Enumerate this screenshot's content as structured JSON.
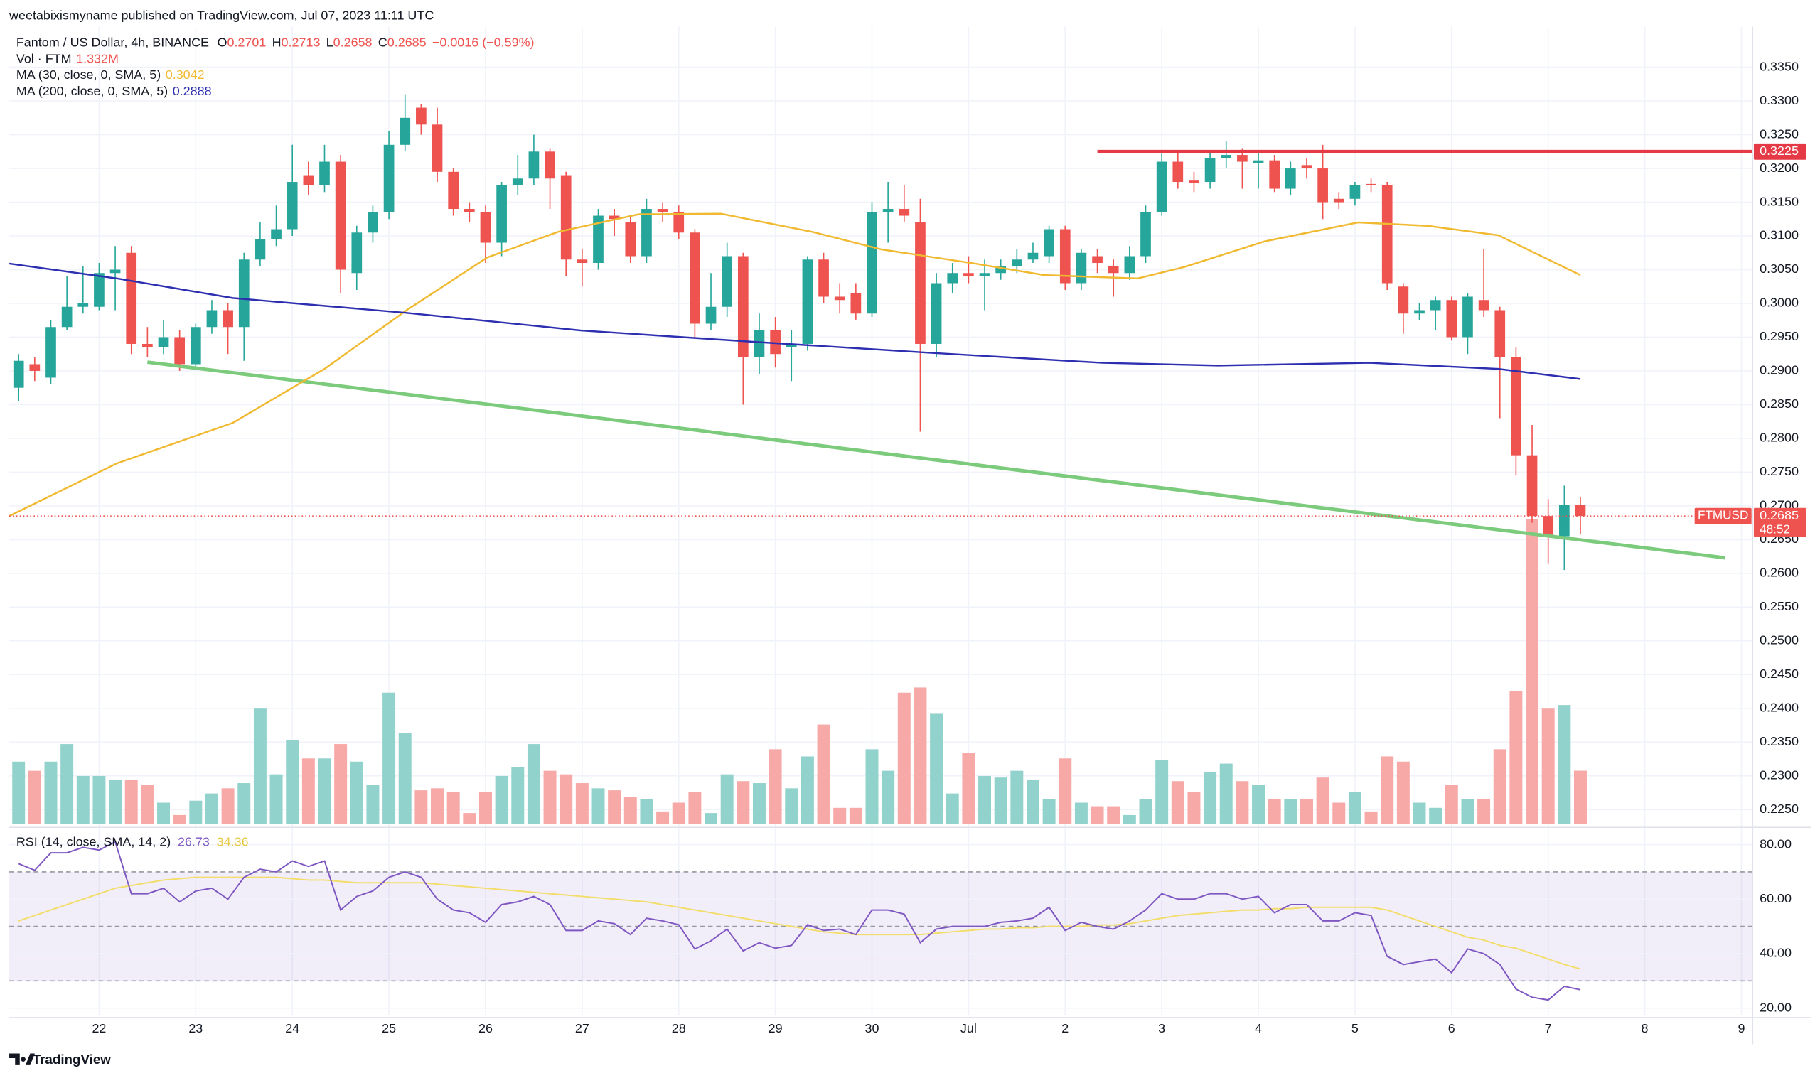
{
  "chart_data": {
    "type": "candlestick",
    "header": "weetabixismyname published on TradingView.com, Jul 07, 2023 11:11 UTC",
    "title": "Fantom / US Dollar, 4h, BINANCE",
    "ohlc_letters": [
      "O",
      "H",
      "L",
      "C"
    ],
    "change": "−0.0016 (−0.59%)",
    "volume_title": "Vol · FTM",
    "volume_label": "1.332M",
    "symbol": "FTMUSD",
    "countdown": "48:52",
    "brand": "TradingView",
    "up_color": "#26a69a",
    "down_color": "#ef5350",
    "volume_up_color": "#92d2cc",
    "volume_down_color": "#f7a9a7",
    "xlim": [
      -0.58,
      107.7
    ],
    "xticks": [
      {
        "value": 5,
        "label": "22"
      },
      {
        "value": 11,
        "label": "23"
      },
      {
        "value": 17,
        "label": "24"
      },
      {
        "value": 23,
        "label": "25"
      },
      {
        "value": 29,
        "label": "26"
      },
      {
        "value": 35,
        "label": "27"
      },
      {
        "value": 41,
        "label": "28"
      },
      {
        "value": 47,
        "label": "29"
      },
      {
        "value": 53,
        "label": "30"
      },
      {
        "value": 59,
        "label": "Jul"
      },
      {
        "value": 65,
        "label": "2"
      },
      {
        "value": 71,
        "label": "3"
      },
      {
        "value": 77,
        "label": "4"
      },
      {
        "value": 83,
        "label": "5"
      },
      {
        "value": 89,
        "label": "6"
      },
      {
        "value": 95,
        "label": "7"
      },
      {
        "value": 101,
        "label": "8"
      },
      {
        "value": 107,
        "label": "9"
      }
    ],
    "ylim": [
      0.2229,
      0.341
    ],
    "yticks": [
      {
        "value": 0.225,
        "label": "0.2250"
      },
      {
        "value": 0.23,
        "label": "0.2300"
      },
      {
        "value": 0.235,
        "label": "0.2350"
      },
      {
        "value": 0.24,
        "label": "0.2400"
      },
      {
        "value": 0.245,
        "label": "0.2450"
      },
      {
        "value": 0.25,
        "label": "0.2500"
      },
      {
        "value": 0.255,
        "label": "0.2550"
      },
      {
        "value": 0.26,
        "label": "0.2600"
      },
      {
        "value": 0.265,
        "label": "0.2650"
      },
      {
        "value": 0.27,
        "label": "0.2700"
      },
      {
        "value": 0.275,
        "label": "0.2750"
      },
      {
        "value": 0.28,
        "label": "0.2800"
      },
      {
        "value": 0.285,
        "label": "0.2850"
      },
      {
        "value": 0.29,
        "label": "0.2900"
      },
      {
        "value": 0.295,
        "label": "0.2950"
      },
      {
        "value": 0.3,
        "label": "0.3000"
      },
      {
        "value": 0.305,
        "label": "0.3050"
      },
      {
        "value": 0.31,
        "label": "0.3100"
      },
      {
        "value": 0.315,
        "label": "0.3150"
      },
      {
        "value": 0.32,
        "label": "0.3200"
      },
      {
        "value": 0.325,
        "label": "0.3250"
      },
      {
        "value": 0.33,
        "label": "0.3300"
      },
      {
        "value": 0.335,
        "label": "0.3350"
      }
    ],
    "grid": true,
    "open": [
      0.2875,
      0.291,
      0.289,
      0.2965,
      0.2995,
      0.2995,
      0.3045,
      0.3075,
      0.294,
      0.2935,
      0.295,
      0.291,
      0.2965,
      0.299,
      0.2965,
      0.3065,
      0.3095,
      0.311,
      0.319,
      0.3175,
      0.321,
      0.3045,
      0.3105,
      0.3135,
      0.3235,
      0.329,
      0.3265,
      0.3195,
      0.314,
      0.3135,
      0.309,
      0.3175,
      0.3185,
      0.3225,
      0.319,
      0.3065,
      0.306,
      0.313,
      0.312,
      0.307,
      0.314,
      0.3135,
      0.3105,
      0.297,
      0.2995,
      0.307,
      0.292,
      0.296,
      0.2935,
      0.294,
      0.3065,
      0.301,
      0.3015,
      0.2985,
      0.3135,
      0.314,
      0.312,
      0.294,
      0.303,
      0.3045,
      0.304,
      0.3045,
      0.3055,
      0.3065,
      0.307,
      0.311,
      0.303,
      0.307,
      0.3055,
      0.3045,
      0.307,
      0.3135,
      0.321,
      0.3182,
      0.318,
      0.3215,
      0.322,
      0.3208,
      0.3212,
      0.317,
      0.3205,
      0.32,
      0.3155,
      0.3155,
      0.3177,
      0.3175,
      0.3025,
      0.2985,
      0.299,
      0.3005,
      0.295,
      0.3005,
      0.299,
      0.292,
      0.2775,
      0.2685,
      0.2655,
      0.2701
    ],
    "high": [
      0.2925,
      0.292,
      0.2975,
      0.304,
      0.3055,
      0.306,
      0.3085,
      0.3085,
      0.2965,
      0.2975,
      0.296,
      0.297,
      0.3005,
      0.3,
      0.3075,
      0.312,
      0.3145,
      0.3235,
      0.321,
      0.3235,
      0.322,
      0.3115,
      0.3145,
      0.3255,
      0.331,
      0.3295,
      0.329,
      0.32,
      0.315,
      0.3145,
      0.318,
      0.322,
      0.325,
      0.323,
      0.3195,
      0.308,
      0.314,
      0.314,
      0.313,
      0.3155,
      0.315,
      0.3145,
      0.311,
      0.3045,
      0.309,
      0.3075,
      0.2985,
      0.298,
      0.296,
      0.307,
      0.3075,
      0.303,
      0.303,
      0.315,
      0.318,
      0.3175,
      0.3155,
      0.3045,
      0.306,
      0.307,
      0.3065,
      0.3065,
      0.308,
      0.309,
      0.3115,
      0.3115,
      0.308,
      0.308,
      0.3065,
      0.3085,
      0.3145,
      0.3225,
      0.3225,
      0.3195,
      0.3225,
      0.324,
      0.323,
      0.3225,
      0.322,
      0.321,
      0.3215,
      0.3235,
      0.3165,
      0.318,
      0.3185,
      0.318,
      0.303,
      0.3,
      0.301,
      0.301,
      0.3015,
      0.308,
      0.2995,
      0.2935,
      0.282,
      0.271,
      0.273,
      0.2713
    ],
    "low": [
      0.2855,
      0.2885,
      0.288,
      0.296,
      0.2985,
      0.299,
      0.299,
      0.2925,
      0.292,
      0.2925,
      0.29,
      0.2905,
      0.2955,
      0.2925,
      0.2915,
      0.3055,
      0.3085,
      0.31,
      0.316,
      0.3165,
      0.3015,
      0.302,
      0.309,
      0.3125,
      0.3225,
      0.325,
      0.318,
      0.313,
      0.312,
      0.306,
      0.307,
      0.316,
      0.3175,
      0.314,
      0.304,
      0.3025,
      0.305,
      0.31,
      0.306,
      0.306,
      0.312,
      0.3095,
      0.295,
      0.296,
      0.298,
      0.285,
      0.2895,
      0.2905,
      0.2885,
      0.293,
      0.3,
      0.2985,
      0.2975,
      0.298,
      0.309,
      0.312,
      0.281,
      0.292,
      0.3015,
      0.303,
      0.299,
      0.3035,
      0.3045,
      0.306,
      0.306,
      0.302,
      0.302,
      0.3045,
      0.301,
      0.3035,
      0.306,
      0.313,
      0.317,
      0.3165,
      0.317,
      0.32,
      0.317,
      0.317,
      0.3165,
      0.316,
      0.3185,
      0.3125,
      0.314,
      0.3145,
      0.3165,
      0.302,
      0.2955,
      0.2975,
      0.296,
      0.2945,
      0.2925,
      0.298,
      0.283,
      0.2745,
      0.2675,
      0.2615,
      0.2605,
      0.2658
    ],
    "close": [
      0.2915,
      0.29,
      0.2965,
      0.2995,
      0.3,
      0.3045,
      0.305,
      0.294,
      0.2935,
      0.295,
      0.291,
      0.2965,
      0.299,
      0.2965,
      0.3065,
      0.3095,
      0.311,
      0.318,
      0.3175,
      0.321,
      0.305,
      0.3105,
      0.3135,
      0.3235,
      0.3275,
      0.3265,
      0.3195,
      0.314,
      0.3135,
      0.309,
      0.3175,
      0.3185,
      0.3225,
      0.3185,
      0.3065,
      0.306,
      0.313,
      0.3125,
      0.307,
      0.314,
      0.3135,
      0.3105,
      0.297,
      0.2995,
      0.307,
      0.292,
      0.296,
      0.2925,
      0.294,
      0.3065,
      0.301,
      0.3005,
      0.2985,
      0.3135,
      0.314,
      0.313,
      0.294,
      0.303,
      0.3045,
      0.304,
      0.3045,
      0.3055,
      0.3065,
      0.3075,
      0.311,
      0.303,
      0.3075,
      0.306,
      0.3045,
      0.307,
      0.3135,
      0.321,
      0.318,
      0.3178,
      0.3215,
      0.322,
      0.321,
      0.3212,
      0.317,
      0.32,
      0.32,
      0.315,
      0.315,
      0.3175,
      0.3175,
      0.303,
      0.2985,
      0.299,
      0.3005,
      0.295,
      0.301,
      0.299,
      0.292,
      0.2775,
      0.2685,
      0.2655,
      0.2701,
      0.2685
    ],
    "volume": [
      1.56,
      1.33,
      1.56,
      2.0,
      1.2,
      1.2,
      1.11,
      1.11,
      0.98,
      0.53,
      0.22,
      0.58,
      0.76,
      0.89,
      1.02,
      2.89,
      1.24,
      2.09,
      1.64,
      1.64,
      2.0,
      1.56,
      0.98,
      3.29,
      2.27,
      0.84,
      0.89,
      0.8,
      0.27,
      0.8,
      1.2,
      1.42,
      2.0,
      1.33,
      1.24,
      1.02,
      0.89,
      0.84,
      0.67,
      0.62,
      0.31,
      0.53,
      0.8,
      0.27,
      1.24,
      1.07,
      1.02,
      1.87,
      0.89,
      1.69,
      2.49,
      0.4,
      0.4,
      1.87,
      1.33,
      3.29,
      3.42,
      2.76,
      0.76,
      1.78,
      1.2,
      1.16,
      1.33,
      1.11,
      0.62,
      1.64,
      0.53,
      0.44,
      0.44,
      0.22,
      0.62,
      1.6,
      1.07,
      0.8,
      1.29,
      1.51,
      1.07,
      0.98,
      0.62,
      0.62,
      0.62,
      1.16,
      0.53,
      0.8,
      0.31,
      1.69,
      1.56,
      0.53,
      0.4,
      0.98,
      0.62,
      0.62,
      1.87,
      3.33,
      7.64,
      2.89,
      2.98,
      1.332
    ],
    "vlim": [
      0,
      20
    ],
    "series": [
      {
        "name": "MA (30, close, 0, SMA, 5)",
        "color": "#f0b930",
        "x": [
          -0.58,
          6.1,
          13.3,
          19,
          24.1,
          29.1,
          33.5,
          38.5,
          43.6,
          49.3,
          53.6,
          59.4,
          63.7,
          69.5,
          72.4,
          77.4,
          83.2,
          87.5,
          91.9,
          97
        ],
        "values": [
          0.2685,
          0.2763,
          0.2823,
          0.2903,
          0.299,
          0.3068,
          0.3106,
          0.3132,
          0.3133,
          0.3106,
          0.308,
          0.3059,
          0.3042,
          0.3037,
          0.3054,
          0.3092,
          0.312,
          0.3115,
          0.3101,
          0.3042
        ]
      },
      {
        "name": "MA (200, close, 0, SMA, 5)",
        "color": "#2e2fb0",
        "x": [
          -0.58,
          6.1,
          13.3,
          24.1,
          34.9,
          45.7,
          56.5,
          67.3,
          74.5,
          83.9,
          91.9,
          97
        ],
        "values": [
          0.3059,
          0.3037,
          0.3008,
          0.2986,
          0.296,
          0.2943,
          0.2927,
          0.2912,
          0.2908,
          0.2912,
          0.2903,
          0.2888
        ]
      }
    ],
    "drawings": [
      {
        "color": "#e53945",
        "x": [
          67,
          107.7
        ],
        "values": [
          0.3225,
          0.3225
        ]
      },
      {
        "color": "#7ccb7c",
        "x": [
          8,
          106
        ],
        "values": [
          0.2913,
          0.2623
        ]
      }
    ],
    "rsi": {
      "name": "RSI (14, close, SMA, 14, 2)",
      "color": "#7e57c2",
      "ma_color": "#f3dd6a",
      "band_color": "#7e57c2",
      "ylim": [
        17.4,
        85.1
      ],
      "yticks": [
        {
          "value": 20,
          "label": "20.00"
        },
        {
          "value": 40,
          "label": "40.00"
        },
        {
          "value": 60,
          "label": "60.00"
        },
        {
          "value": 80,
          "label": "80.00"
        }
      ],
      "bands": [
        30,
        50,
        70
      ],
      "values": [
        73,
        70.6,
        77,
        77,
        79,
        78,
        81,
        62,
        62,
        64,
        59,
        63,
        64,
        60,
        68,
        71,
        70,
        74,
        72,
        74,
        56,
        61,
        63,
        68,
        70,
        68,
        60,
        56,
        55,
        51.5,
        58,
        59,
        61,
        58,
        48.5,
        48.5,
        52,
        51,
        47,
        53,
        52,
        50.6,
        41.7,
        44.7,
        49,
        41,
        44,
        42,
        43,
        50.6,
        48.5,
        49,
        47,
        56,
        56,
        54.5,
        44,
        49,
        50,
        50,
        50,
        51.5,
        52,
        53,
        57,
        48.5,
        51.5,
        50,
        49,
        52,
        56,
        62,
        60,
        60,
        62,
        62,
        60,
        61,
        55,
        58,
        58,
        52,
        52,
        55,
        54,
        39,
        36,
        37,
        38,
        33,
        41.7,
        40,
        36,
        27,
        24,
        23,
        28,
        26.73
      ],
      "ma": [
        52,
        54,
        56,
        58,
        60,
        62,
        64,
        65,
        66,
        67,
        67.5,
        68,
        68,
        68,
        68,
        68,
        68,
        67.5,
        67,
        67,
        66.5,
        66,
        66,
        66,
        66,
        66,
        65.5,
        65,
        64.5,
        64,
        63.5,
        63,
        62.5,
        62,
        61.5,
        61,
        60.5,
        60,
        59.5,
        59,
        58,
        57,
        56,
        55,
        54,
        53,
        52,
        51,
        50,
        49,
        48,
        47.5,
        47,
        47,
        47,
        47,
        47,
        47.5,
        48,
        48.5,
        49,
        49,
        49.5,
        49.5,
        50,
        50,
        50,
        50.5,
        50.5,
        51,
        52,
        53,
        54,
        54.5,
        55,
        55.5,
        56,
        56,
        56.5,
        56.5,
        57,
        57,
        57,
        57,
        57,
        56,
        54,
        52,
        50,
        48,
        46,
        45,
        43,
        42,
        40,
        38,
        36,
        34.36
      ]
    }
  }
}
